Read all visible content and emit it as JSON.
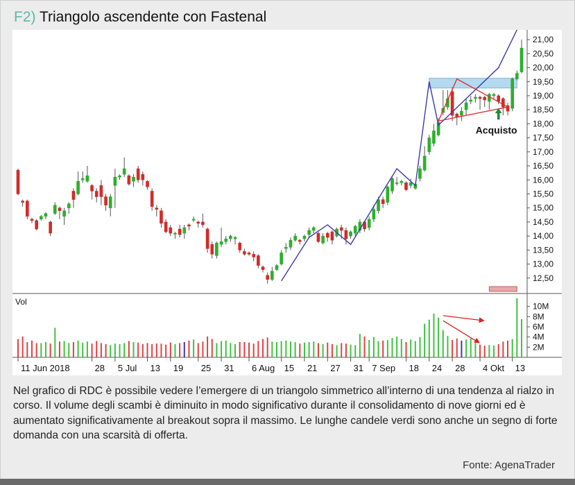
{
  "figure": {
    "tag": "F2)",
    "title": "Triangolo ascendente con Fastenal",
    "caption": "Nel grafico di RDC è possibile vedere l’emergere di un triangolo simmetrico all’interno di una tendenza al rialzo in corso. Il volume degli scambi è diminuito in modo significativo durante il consolidamento di nove giorni ed è aumentato significativamente al breakout sopra il massimo. Le lunghe candele verdi sono anche un segno di forte domanda con una scarsità di offerta.",
    "source": "Fonte: AgenaTrader"
  },
  "chart_data": {
    "type": "candlestick",
    "title": "",
    "price_axis": {
      "range": [
        12.0,
        21.3
      ],
      "tick_values": [
        12.5,
        13,
        13.5,
        14,
        14.5,
        15,
        15.5,
        16,
        16.5,
        17,
        17.5,
        18,
        18.5,
        19,
        19.5,
        20,
        20.5,
        21
      ],
      "tick_labels": [
        "12,50",
        "13,00",
        "13,50",
        "14,00",
        "14,50",
        "15,00",
        "15,50",
        "16,00",
        "16,50",
        "17,00",
        "17,50",
        "18,00",
        "18,50",
        "19,00",
        "19,50",
        "20,00",
        "20,50",
        "21,00"
      ]
    },
    "volume_axis": {
      "label": "Vol",
      "range": [
        0,
        12
      ],
      "unit": "M",
      "tick_values": [
        2,
        4,
        6,
        8,
        10
      ],
      "tick_labels": [
        "2M",
        "4M",
        "6M",
        "8M",
        "10M"
      ]
    },
    "x_axis": {
      "tick_labels": [
        "11 Jun 2018",
        "28",
        "5 Jul",
        "13",
        "19",
        "25",
        "31",
        "6 Aug",
        "15",
        "21",
        "27",
        "31",
        "7 Sep",
        "18",
        "24",
        "28",
        "4 Okt",
        "13"
      ],
      "tick_bar_index": [
        0,
        16,
        21,
        28,
        33,
        39,
        44,
        50,
        57,
        62,
        67,
        72,
        76,
        84,
        89,
        94,
        100,
        107
      ]
    },
    "colors": {
      "up": "#2bb02b",
      "down": "#d42a2a",
      "trend": "#3a3aaa",
      "triangle": "#e03030",
      "zone": "#a8d4ee",
      "arrow": "#1f8a3a"
    },
    "candles": [
      [
        16.35,
        15.5,
        16.4,
        15.45
      ],
      [
        15.25,
        15.2,
        15.3,
        15.05
      ],
      [
        15.25,
        14.7,
        15.3,
        14.6
      ],
      [
        14.6,
        14.55,
        14.65,
        14.45
      ],
      [
        14.55,
        14.25,
        14.6,
        14.2
      ],
      [
        14.6,
        14.7,
        14.75,
        14.55
      ],
      [
        14.7,
        14.8,
        14.85,
        14.6
      ],
      [
        14.5,
        14.1,
        14.55,
        14.0
      ],
      [
        14.8,
        15.1,
        15.2,
        14.75
      ],
      [
        15.0,
        14.9,
        15.05,
        14.6
      ],
      [
        14.7,
        14.9,
        15.0,
        14.4
      ],
      [
        15.0,
        15.15,
        15.2,
        14.8
      ],
      [
        15.6,
        15.3,
        15.7,
        15.0
      ],
      [
        15.5,
        15.95,
        16.3,
        15.45
      ],
      [
        16.0,
        16.05,
        16.3,
        15.9
      ],
      [
        15.95,
        16.15,
        16.5,
        15.9
      ],
      [
        15.8,
        15.6,
        15.85,
        15.3
      ],
      [
        15.6,
        15.4,
        15.7,
        15.2
      ],
      [
        15.8,
        15.4,
        16.0,
        15.1
      ],
      [
        15.4,
        15.1,
        15.5,
        14.9
      ],
      [
        15.0,
        15.4,
        15.5,
        14.7
      ],
      [
        15.8,
        16.1,
        16.4,
        15.0
      ],
      [
        16.1,
        16.15,
        16.2,
        16.0
      ],
      [
        16.2,
        16.4,
        16.8,
        16.1
      ],
      [
        16.15,
        15.85,
        16.2,
        15.8
      ],
      [
        15.95,
        16.1,
        16.2,
        15.75
      ],
      [
        16.4,
        16.0,
        16.5,
        15.9
      ],
      [
        16.2,
        16.0,
        16.3,
        15.8
      ],
      [
        15.95,
        15.75,
        16.0,
        15.65
      ],
      [
        15.6,
        15.05,
        15.7,
        14.9
      ],
      [
        15.0,
        14.95,
        15.1,
        14.7
      ],
      [
        14.9,
        14.45,
        15.0,
        14.3
      ],
      [
        14.5,
        14.15,
        14.6,
        14.1
      ],
      [
        14.3,
        14.1,
        14.4,
        14.0
      ],
      [
        14.1,
        14.1,
        14.15,
        13.9
      ],
      [
        14.25,
        14.05,
        14.4,
        13.95
      ],
      [
        14.1,
        14.3,
        14.4,
        13.9
      ],
      [
        14.4,
        14.35,
        14.45,
        14.2
      ],
      [
        14.6,
        14.6,
        14.7,
        14.5
      ],
      [
        14.5,
        14.45,
        14.55,
        14.3
      ],
      [
        14.5,
        14.4,
        14.8,
        14.3
      ],
      [
        14.25,
        13.55,
        14.3,
        13.4
      ],
      [
        13.7,
        13.35,
        13.8,
        13.2
      ],
      [
        13.3,
        13.75,
        13.8,
        13.2
      ],
      [
        13.7,
        13.8,
        14.3,
        13.6
      ],
      [
        13.8,
        13.9,
        14.0,
        13.7
      ],
      [
        13.9,
        14.0,
        14.05,
        13.8
      ],
      [
        13.9,
        13.95,
        14.0,
        13.7
      ],
      [
        13.75,
        13.5,
        13.8,
        13.4
      ],
      [
        13.45,
        13.35,
        13.55,
        13.3
      ],
      [
        13.4,
        13.35,
        13.45,
        13.3
      ],
      [
        13.35,
        13.25,
        13.45,
        13.1
      ],
      [
        13.3,
        12.95,
        13.35,
        12.85
      ],
      [
        12.9,
        12.8,
        12.95,
        12.7
      ],
      [
        12.6,
        12.45,
        12.7,
        12.3
      ],
      [
        12.45,
        12.75,
        12.9,
        12.4
      ],
      [
        12.8,
        12.95,
        13.0,
        12.75
      ],
      [
        13.0,
        13.4,
        13.5,
        12.95
      ],
      [
        13.55,
        13.6,
        13.75,
        13.4
      ],
      [
        13.6,
        13.85,
        13.95,
        13.5
      ],
      [
        13.85,
        14.0,
        14.1,
        13.8
      ],
      [
        13.85,
        13.8,
        13.9,
        13.7
      ],
      [
        13.9,
        14.0,
        14.05,
        13.8
      ],
      [
        14.05,
        14.2,
        14.3,
        13.95
      ],
      [
        14.2,
        14.3,
        14.35,
        14.1
      ],
      [
        14.1,
        13.8,
        14.15,
        13.75
      ],
      [
        13.75,
        14.0,
        14.1,
        13.7
      ],
      [
        14.1,
        13.95,
        14.15,
        13.8
      ],
      [
        14.15,
        13.85,
        14.2,
        13.7
      ],
      [
        14.0,
        14.25,
        14.3,
        13.95
      ],
      [
        14.3,
        14.2,
        14.4,
        13.9
      ],
      [
        14.2,
        13.9,
        14.3,
        13.7
      ],
      [
        14.0,
        14.15,
        14.2,
        13.9
      ],
      [
        14.1,
        14.35,
        14.4,
        14.0
      ],
      [
        14.2,
        14.5,
        14.6,
        14.1
      ],
      [
        14.5,
        14.25,
        14.55,
        14.15
      ],
      [
        14.3,
        14.6,
        14.7,
        14.2
      ],
      [
        14.6,
        14.95,
        15.1,
        14.5
      ],
      [
        14.9,
        15.3,
        15.4,
        14.8
      ],
      [
        15.3,
        15.15,
        15.4,
        15.0
      ],
      [
        15.2,
        15.75,
        15.8,
        15.1
      ],
      [
        15.6,
        16.05,
        16.1,
        15.5
      ],
      [
        15.9,
        15.9,
        16.1,
        15.8
      ],
      [
        15.9,
        15.95,
        16.0,
        15.8
      ],
      [
        15.9,
        15.65,
        15.95,
        15.6
      ],
      [
        15.8,
        15.9,
        16.05,
        15.7
      ],
      [
        15.7,
        15.85,
        15.9,
        15.65
      ],
      [
        16.05,
        16.4,
        16.5,
        15.95
      ],
      [
        16.35,
        16.85,
        17.2,
        16.3
      ],
      [
        17.0,
        17.5,
        17.6,
        16.9
      ],
      [
        17.3,
        17.75,
        18.0,
        17.2
      ],
      [
        17.6,
        18.05,
        18.2,
        17.55
      ],
      [
        18.4,
        18.55,
        19.2,
        18.3
      ],
      [
        18.6,
        18.9,
        19.2,
        18.5
      ],
      [
        19.15,
        18.3,
        19.3,
        18.1
      ],
      [
        18.35,
        18.25,
        18.4,
        17.95
      ],
      [
        18.3,
        18.45,
        18.6,
        18.1
      ],
      [
        18.5,
        18.75,
        18.9,
        18.3
      ],
      [
        18.8,
        18.85,
        19.0,
        18.7
      ],
      [
        18.9,
        18.95,
        19.05,
        18.75
      ],
      [
        18.95,
        18.9,
        19.0,
        18.5
      ],
      [
        18.95,
        18.85,
        19.0,
        18.6
      ],
      [
        18.8,
        19.05,
        19.1,
        18.5
      ],
      [
        19.0,
        19.05,
        19.1,
        18.85
      ],
      [
        19.0,
        18.8,
        19.05,
        18.7
      ],
      [
        18.9,
        18.6,
        18.95,
        18.3
      ],
      [
        18.65,
        18.45,
        18.75,
        18.3
      ],
      [
        18.55,
        19.6,
        19.65,
        18.45
      ],
      [
        19.6,
        19.8,
        19.9,
        19.55
      ],
      [
        19.85,
        20.7,
        21.0,
        19.8
      ]
    ],
    "volumes": [
      3.6,
      4.1,
      3.0,
      3.3,
      2.8,
      2.8,
      3.0,
      2.7,
      5.8,
      3.1,
      3.2,
      2.8,
      3.0,
      3.3,
      2.9,
      3.1,
      2.7,
      3.2,
      2.8,
      2.6,
      2.4,
      2.7,
      2.6,
      2.8,
      3.2,
      3.0,
      2.9,
      2.6,
      2.8,
      2.6,
      2.7,
      2.7,
      2.5,
      2.9,
      2.6,
      2.8,
      3.0,
      3.3,
      3.5,
      2.8,
      3.1,
      4.1,
      3.6,
      2.8,
      3.2,
      3.3,
      2.8,
      2.6,
      3.0,
      3.0,
      2.9,
      2.7,
      3.2,
      3.6,
      3.9,
      3.1,
      3.0,
      3.2,
      3.3,
      3.1,
      3.0,
      2.7,
      2.9,
      3.0,
      3.1,
      2.8,
      2.6,
      2.9,
      2.6,
      2.4,
      2.8,
      2.7,
      2.5,
      2.4,
      4.6,
      4.1,
      3.4,
      4.0,
      3.2,
      3.3,
      3.4,
      3.8,
      4.1,
      3.6,
      3.0,
      3.5,
      3.2,
      4.0,
      6.6,
      7.4,
      8.6,
      7.8,
      5.4,
      4.2,
      3.4,
      3.7,
      3.3,
      3.5,
      3.7,
      2.8,
      2.5,
      2.3,
      2.4,
      2.3,
      2.6,
      3.1,
      3.3,
      3.6,
      11.6,
      7.5
    ],
    "volume_bar_colors": {
      "36": "#3a3aaa",
      "96": "#3a3aaa"
    },
    "annotations": [
      {
        "text": "Acquisto",
        "type": "buy-arrow",
        "bar_index": 104,
        "price": 17.75
      }
    ],
    "trendlines": [
      [
        [
          57,
          12.4
        ],
        [
          63,
          13.95
        ],
        [
          67,
          14.4
        ],
        [
          72,
          13.7
        ],
        [
          79,
          15.6
        ],
        [
          82,
          16.4
        ],
        [
          86,
          15.8
        ],
        [
          89,
          19.5
        ],
        [
          91,
          17.95
        ],
        [
          104,
          20.0
        ],
        [
          108,
          21.35
        ]
      ]
    ],
    "triangle": [
      [
        91,
        18.1
      ],
      [
        95,
        19.6
      ],
      [
        106,
        18.6
      ]
    ],
    "resistance_zone": {
      "bar_from": 89,
      "bar_to": 108,
      "price_from": 19.35,
      "price_to": 19.55
    },
    "volume_arrows": [
      {
        "from_bar": 92,
        "from_vol": 8.2,
        "to_bar": 101,
        "to_vol": 7.2
      },
      {
        "from_bar": 92,
        "from_vol": 7.2,
        "to_bar": 100,
        "to_vol": 2.8
      }
    ],
    "grid": false,
    "legend": "none"
  }
}
